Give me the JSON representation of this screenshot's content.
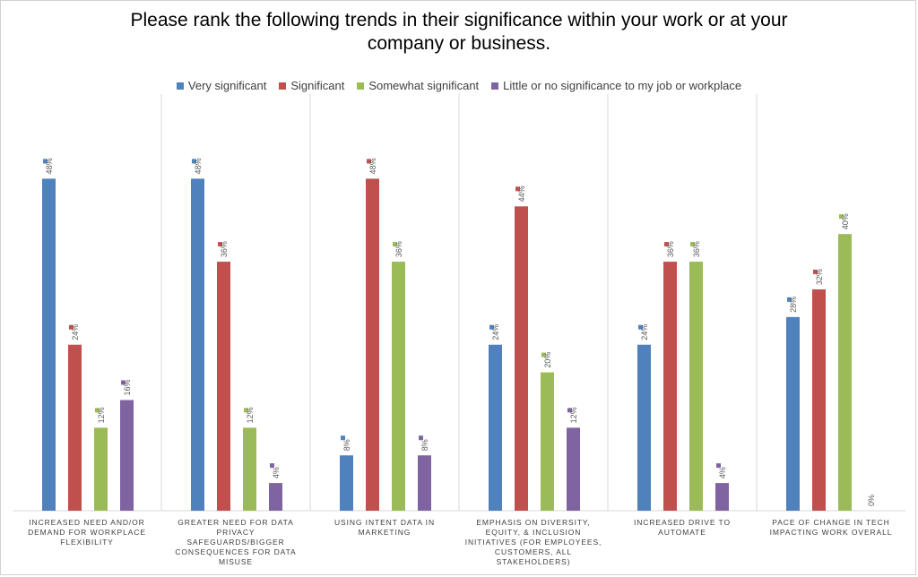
{
  "chart_data": {
    "type": "bar",
    "title": "Please rank the following trends in their significance within your work or at your company or business.",
    "categories": [
      "Increased need and/or demand for workplace flexibility",
      "Greater need for data privacy safeguards/bigger consequences for data misuse",
      "Using intent data in marketing",
      "Emphasis on diversity, equity, & inclusion initiatives (for employees, customers, all stakeholders)",
      "Increased drive to automate",
      "Pace of change in tech impacting work overall"
    ],
    "series": [
      {
        "name": "Very significant",
        "color": "#4f81bd",
        "values": [
          48,
          48,
          8,
          24,
          24,
          28
        ]
      },
      {
        "name": "Significant",
        "color": "#c0504d",
        "values": [
          24,
          36,
          48,
          44,
          36,
          32
        ]
      },
      {
        "name": "Somewhat significant",
        "color": "#9bbb59",
        "values": [
          12,
          12,
          36,
          20,
          36,
          40
        ]
      },
      {
        "name": "Little or no significance to my job or workplace",
        "color": "#8064a2",
        "values": [
          16,
          4,
          8,
          12,
          4,
          0
        ]
      }
    ],
    "value_suffix": "%",
    "ylim": [
      0,
      50
    ],
    "legend_position": "top",
    "grid": false
  }
}
